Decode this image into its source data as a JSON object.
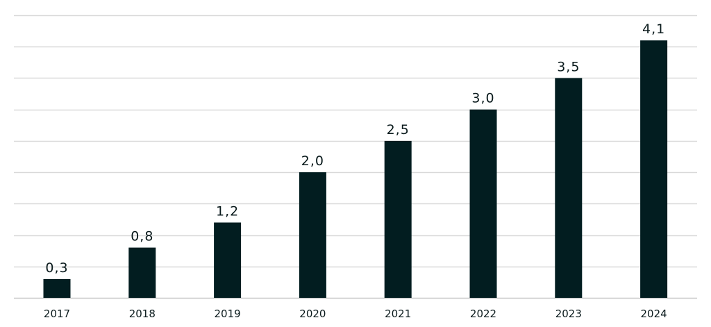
{
  "chart_data": {
    "type": "bar",
    "title": "",
    "xlabel": "",
    "ylabel": "",
    "categories": [
      "2017",
      "2018",
      "2019",
      "2020",
      "2021",
      "2022",
      "2023",
      "2024"
    ],
    "values": [
      0.3,
      0.8,
      1.2,
      2.0,
      2.5,
      3.0,
      3.5,
      4.1
    ],
    "value_labels": [
      "0,3",
      "0,8",
      "1,2",
      "2,0",
      "2,5",
      "3,0",
      "3,5",
      "4,1"
    ],
    "ylim": [
      0,
      4.5
    ],
    "y_grid_step": 0.5,
    "grid": true,
    "y_tick_labels_shown": false,
    "legend": "none",
    "colors": {
      "bar": "#021d20",
      "grid": "#d9d9d9",
      "text": "#0a1a1c"
    }
  }
}
